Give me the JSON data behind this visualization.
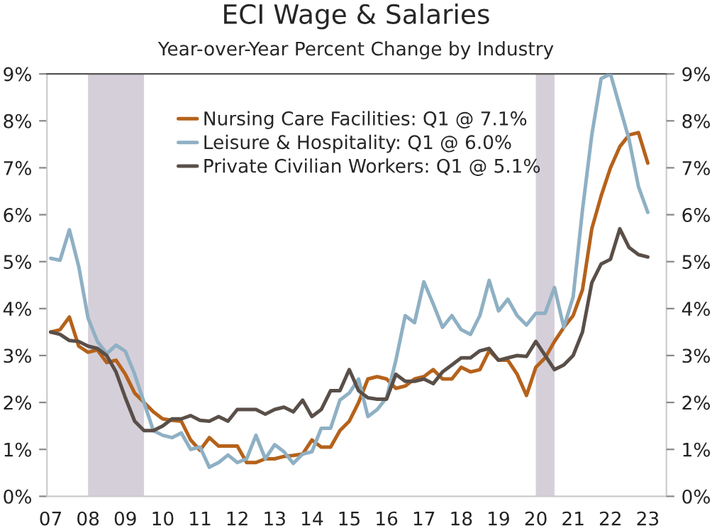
{
  "chart_data": {
    "type": "line",
    "title": "ECI Wage & Salaries",
    "subtitle": "Year-over-Year Percent Change by Industry",
    "x": [
      2007,
      2007.25,
      2007.5,
      2007.75,
      2008,
      2008.25,
      2008.5,
      2008.75,
      2009,
      2009.25,
      2009.5,
      2009.75,
      2010,
      2010.25,
      2010.5,
      2010.75,
      2011,
      2011.25,
      2011.5,
      2011.75,
      2012,
      2012.25,
      2012.5,
      2012.75,
      2013,
      2013.25,
      2013.5,
      2013.75,
      2014,
      2014.25,
      2014.5,
      2014.75,
      2015,
      2015.25,
      2015.5,
      2015.75,
      2016,
      2016.25,
      2016.5,
      2016.75,
      2017,
      2017.25,
      2017.5,
      2017.75,
      2018,
      2018.25,
      2018.5,
      2018.75,
      2019,
      2019.25,
      2019.5,
      2019.75,
      2020,
      2020.25,
      2020.5,
      2020.75,
      2021,
      2021.25,
      2021.5,
      2021.75,
      2022,
      2022.25,
      2022.5,
      2022.75,
      2023
    ],
    "series": [
      {
        "name": "Nursing Care Facilities: Q1 @ 7.1%",
        "color": "#b5621b",
        "values": [
          3.5,
          3.55,
          3.82,
          3.2,
          3.07,
          3.12,
          2.85,
          2.9,
          2.6,
          2.2,
          2.0,
          1.8,
          1.65,
          1.62,
          1.6,
          1.2,
          0.98,
          1.25,
          1.07,
          1.07,
          1.07,
          0.72,
          0.72,
          0.8,
          0.8,
          0.85,
          0.87,
          0.9,
          1.2,
          1.05,
          1.05,
          1.4,
          1.6,
          2.0,
          2.5,
          2.55,
          2.5,
          2.3,
          2.35,
          2.5,
          2.55,
          2.7,
          2.5,
          2.5,
          2.75,
          2.65,
          2.7,
          3.1,
          2.9,
          2.9,
          2.6,
          2.15,
          2.75,
          2.95,
          3.3,
          3.6,
          3.85,
          4.4,
          5.7,
          6.4,
          7.0,
          7.45,
          7.7,
          7.75,
          7.1
        ]
      },
      {
        "name": "Leisure & Hospitality: Q1 @ 6.0%",
        "color": "#8fb0c4",
        "values": [
          5.07,
          5.03,
          5.68,
          4.9,
          3.8,
          3.3,
          3.04,
          3.22,
          3.09,
          2.6,
          2.0,
          1.4,
          1.3,
          1.25,
          1.35,
          1.0,
          1.05,
          0.62,
          0.72,
          0.88,
          0.72,
          0.8,
          1.3,
          0.8,
          1.1,
          0.95,
          0.7,
          0.9,
          0.95,
          1.45,
          1.45,
          2.05,
          2.2,
          2.5,
          1.7,
          1.85,
          2.1,
          2.9,
          3.85,
          3.7,
          4.57,
          4.1,
          3.6,
          3.85,
          3.55,
          3.45,
          3.85,
          4.6,
          3.95,
          4.2,
          3.85,
          3.65,
          3.9,
          3.9,
          4.45,
          3.6,
          4.25,
          6.1,
          7.7,
          8.9,
          9.0,
          8.3,
          7.6,
          6.6,
          6.05
        ]
      },
      {
        "name": "Private Civilian Workers: Q1 @ 5.1%",
        "color": "#5a4f48",
        "values": [
          3.5,
          3.45,
          3.32,
          3.3,
          3.2,
          3.15,
          3.0,
          2.65,
          2.1,
          1.6,
          1.4,
          1.4,
          1.5,
          1.65,
          1.65,
          1.72,
          1.62,
          1.6,
          1.7,
          1.6,
          1.85,
          1.85,
          1.85,
          1.75,
          1.85,
          1.9,
          1.8,
          2.05,
          1.7,
          1.85,
          2.25,
          2.25,
          2.7,
          2.25,
          2.1,
          2.07,
          2.07,
          2.6,
          2.45,
          2.45,
          2.5,
          2.4,
          2.65,
          2.8,
          2.95,
          2.95,
          3.1,
          3.15,
          2.9,
          2.95,
          3.0,
          2.98,
          3.3,
          3.0,
          2.7,
          2.8,
          3.0,
          3.5,
          4.55,
          4.95,
          5.05,
          5.7,
          5.3,
          5.15,
          5.1
        ]
      }
    ],
    "xlim": [
      2006.9,
      2023.5
    ],
    "xticks": [
      {
        "value": 2007,
        "label": "07"
      },
      {
        "value": 2008,
        "label": "08"
      },
      {
        "value": 2009,
        "label": "09"
      },
      {
        "value": 2010,
        "label": "10"
      },
      {
        "value": 2011,
        "label": "11"
      },
      {
        "value": 2012,
        "label": "12"
      },
      {
        "value": 2013,
        "label": "13"
      },
      {
        "value": 2014,
        "label": "14"
      },
      {
        "value": 2015,
        "label": "15"
      },
      {
        "value": 2016,
        "label": "16"
      },
      {
        "value": 2017,
        "label": "17"
      },
      {
        "value": 2018,
        "label": "18"
      },
      {
        "value": 2019,
        "label": "19"
      },
      {
        "value": 2020,
        "label": "20"
      },
      {
        "value": 2021,
        "label": "21"
      },
      {
        "value": 2022,
        "label": "22"
      },
      {
        "value": 2023,
        "label": "23"
      }
    ],
    "ylim": [
      0,
      9
    ],
    "yticks": [
      {
        "value": 0,
        "label": "0%"
      },
      {
        "value": 1,
        "label": "1%"
      },
      {
        "value": 2,
        "label": "2%"
      },
      {
        "value": 3,
        "label": "3%"
      },
      {
        "value": 4,
        "label": "4%"
      },
      {
        "value": 5,
        "label": "5%"
      },
      {
        "value": 6,
        "label": "6%"
      },
      {
        "value": 7,
        "label": "7%"
      },
      {
        "value": 8,
        "label": "8%"
      },
      {
        "value": 9,
        "label": "9%"
      }
    ],
    "y2lim": [
      0,
      9
    ],
    "y2ticks": [
      {
        "value": 0,
        "label": "0%"
      },
      {
        "value": 1,
        "label": "1%"
      },
      {
        "value": 2,
        "label": "2%"
      },
      {
        "value": 3,
        "label": "3%"
      },
      {
        "value": 4,
        "label": "4%"
      },
      {
        "value": 5,
        "label": "5%"
      },
      {
        "value": 6,
        "label": "6%"
      },
      {
        "value": 7,
        "label": "7%"
      },
      {
        "value": 8,
        "label": "8%"
      },
      {
        "value": 9,
        "label": "9%"
      }
    ],
    "bands": [
      {
        "axis": "x",
        "from": 2008,
        "to": 2009.5,
        "color": "#d5cfd9"
      },
      {
        "axis": "x",
        "from": 2020,
        "to": 2020.5,
        "color": "#d5cfd9"
      }
    ],
    "legend": "top left",
    "grid": false,
    "line_style": "solid",
    "marker": "none"
  }
}
